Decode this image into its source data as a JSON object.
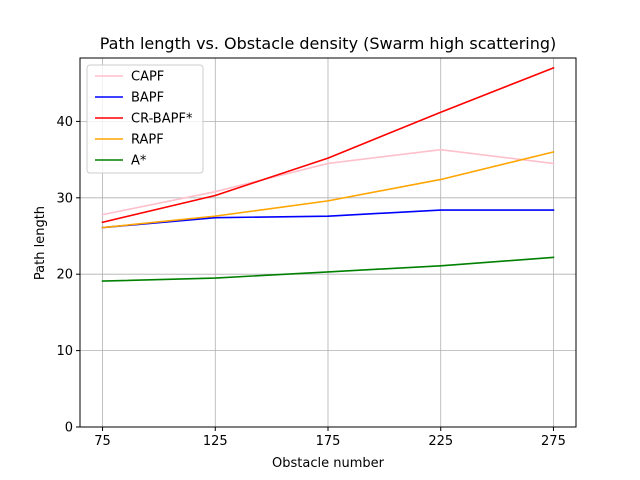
{
  "chart_data": {
    "type": "line",
    "title": "Path length vs. Obstacle density (Swarm high scattering)",
    "xlabel": "Obstacle number",
    "ylabel": "Path length",
    "x": [
      75,
      125,
      175,
      225,
      275
    ],
    "x_ticks": [
      "75",
      "125",
      "175",
      "225",
      "275"
    ],
    "y_ticks": [
      "0",
      "10",
      "20",
      "30",
      "40"
    ],
    "ylim": [
      0,
      48.3
    ],
    "grid": true,
    "legend_position": "top-left",
    "series": [
      {
        "name": "CAPF",
        "color": "#ffc0cb",
        "values": [
          27.8,
          30.8,
          34.5,
          36.3,
          34.5
        ]
      },
      {
        "name": "BAPF",
        "color": "#0000ff",
        "values": [
          26.1,
          27.4,
          27.6,
          28.4,
          28.4
        ]
      },
      {
        "name": "CR-BAPF*",
        "color": "#ff0000",
        "values": [
          26.8,
          30.3,
          35.2,
          41.2,
          47.0
        ]
      },
      {
        "name": "RAPF",
        "color": "#ffa500",
        "values": [
          26.1,
          27.6,
          29.6,
          32.4,
          36.0
        ]
      },
      {
        "name": "A*",
        "color": "#008000",
        "values": [
          19.1,
          19.5,
          20.3,
          21.1,
          22.2
        ]
      }
    ]
  }
}
